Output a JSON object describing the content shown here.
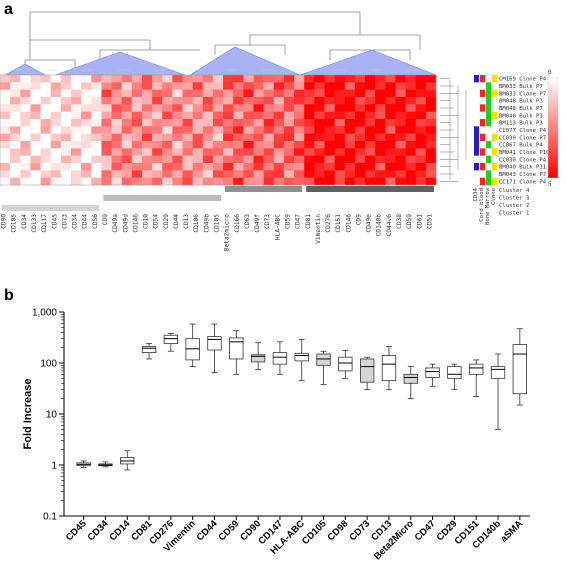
{
  "panels": {
    "a": "a",
    "b": "b"
  },
  "chart_data": [
    {
      "type": "heatmap",
      "panel": "a",
      "columns": [
        "CD90",
        "CD105",
        "CD34",
        "CD133",
        "CD117",
        "CD45",
        "CD73",
        "CD34",
        "CD44",
        "CD56",
        "CD9",
        "CD49a",
        "CD49d",
        "CD146",
        "CD10",
        "CD54",
        "CD29",
        "CD44",
        "CD13",
        "CD106",
        "CD49b",
        "CD105",
        "Beta2micro",
        "CD166",
        "CD63",
        "CD49f",
        "CD73",
        "HLA-ABC",
        "CD59",
        "CD47",
        "CD81",
        "Vimentin",
        "CD276",
        "CD151",
        "CD146",
        "CD9",
        "CD49e",
        "CD140b",
        "CD44v6",
        "CD38",
        "CD59",
        "CD61",
        "CD51"
      ],
      "rows": [
        "CM169 Clone P4",
        "BM033 Bulk P7",
        "BM033 Clone P7",
        "BM048 Bulk P3",
        "BM048 Bulk P7",
        "BM040 Bulk P3",
        "BM113 Bulk P3",
        "CC077 Clone P4",
        "CC030 Clone P7",
        "CC067 Bulk P4",
        "BM041 Clone P10",
        "CC030 Clone P4",
        "BM040 Bulk P11",
        "BM043 Clone P7",
        "CC171 Clone P4"
      ],
      "column_clusters": [
        "Cluster 1",
        "Cluster 2",
        "Cluster 3",
        "Cluster 4"
      ],
      "row_annotation_labels": [
        "CD34",
        "Cord blood",
        "Bone Marrow",
        "Clone"
      ],
      "color_scale": {
        "min": "0",
        "max": "5",
        "low_color": "#ffffff",
        "high_color": "#ff0000"
      }
    },
    {
      "type": "boxplot",
      "panel": "b",
      "ylabel": "Fold Increase",
      "yscale": "log",
      "ylim": [
        0.1,
        1000
      ],
      "yticks": [
        "0.1",
        "1",
        "10",
        "100",
        "1,000"
      ],
      "categories": [
        "CD45",
        "CD34",
        "CD14",
        "CD81",
        "CD276",
        "Vimentin",
        "CD44",
        "CD59",
        "CD90",
        "CD147",
        "HLA-ABC",
        "CD105",
        "CD98",
        "CD73",
        "CD13",
        "Beta2Micro",
        "CD47",
        "CD29",
        "CD151",
        "CD140b",
        "aSMA"
      ],
      "boxes": [
        {
          "min": 0.9,
          "q1": 0.97,
          "median": 1.03,
          "q3": 1.1,
          "max": 1.2
        },
        {
          "min": 0.92,
          "q1": 0.97,
          "median": 1.0,
          "q3": 1.05,
          "max": 1.15
        },
        {
          "min": 0.8,
          "q1": 1.05,
          "median": 1.2,
          "q3": 1.4,
          "max": 1.9
        },
        {
          "min": 120,
          "q1": 160,
          "median": 195,
          "q3": 210,
          "max": 240
        },
        {
          "min": 170,
          "q1": 240,
          "median": 300,
          "q3": 350,
          "max": 380
        },
        {
          "min": 85,
          "q1": 115,
          "median": 190,
          "q3": 300,
          "max": 580
        },
        {
          "min": 65,
          "q1": 180,
          "median": 290,
          "q3": 330,
          "max": 580
        },
        {
          "min": 60,
          "q1": 120,
          "median": 260,
          "q3": 310,
          "max": 430
        },
        {
          "min": 75,
          "q1": 105,
          "median": 135,
          "q3": 145,
          "max": 250
        },
        {
          "min": 60,
          "q1": 95,
          "median": 130,
          "q3": 160,
          "max": 260
        },
        {
          "min": 45,
          "q1": 110,
          "median": 140,
          "q3": 155,
          "max": 290
        },
        {
          "min": 38,
          "q1": 90,
          "median": 120,
          "q3": 150,
          "max": 170
        },
        {
          "min": 50,
          "q1": 70,
          "median": 100,
          "q3": 130,
          "max": 175
        },
        {
          "min": 30,
          "q1": 42,
          "median": 85,
          "q3": 120,
          "max": 130
        },
        {
          "min": 30,
          "q1": 45,
          "median": 95,
          "q3": 140,
          "max": 210
        },
        {
          "min": 20,
          "q1": 40,
          "median": 52,
          "q3": 60,
          "max": 85
        },
        {
          "min": 35,
          "q1": 52,
          "median": 68,
          "q3": 80,
          "max": 95
        },
        {
          "min": 30,
          "q1": 50,
          "median": 60,
          "q3": 85,
          "max": 95
        },
        {
          "min": 22,
          "q1": 60,
          "median": 80,
          "q3": 95,
          "max": 115
        },
        {
          "min": 5,
          "q1": 50,
          "median": 75,
          "q3": 85,
          "max": 150
        },
        {
          "min": 15,
          "q1": 25,
          "median": 150,
          "q3": 230,
          "max": 470
        }
      ]
    }
  ]
}
